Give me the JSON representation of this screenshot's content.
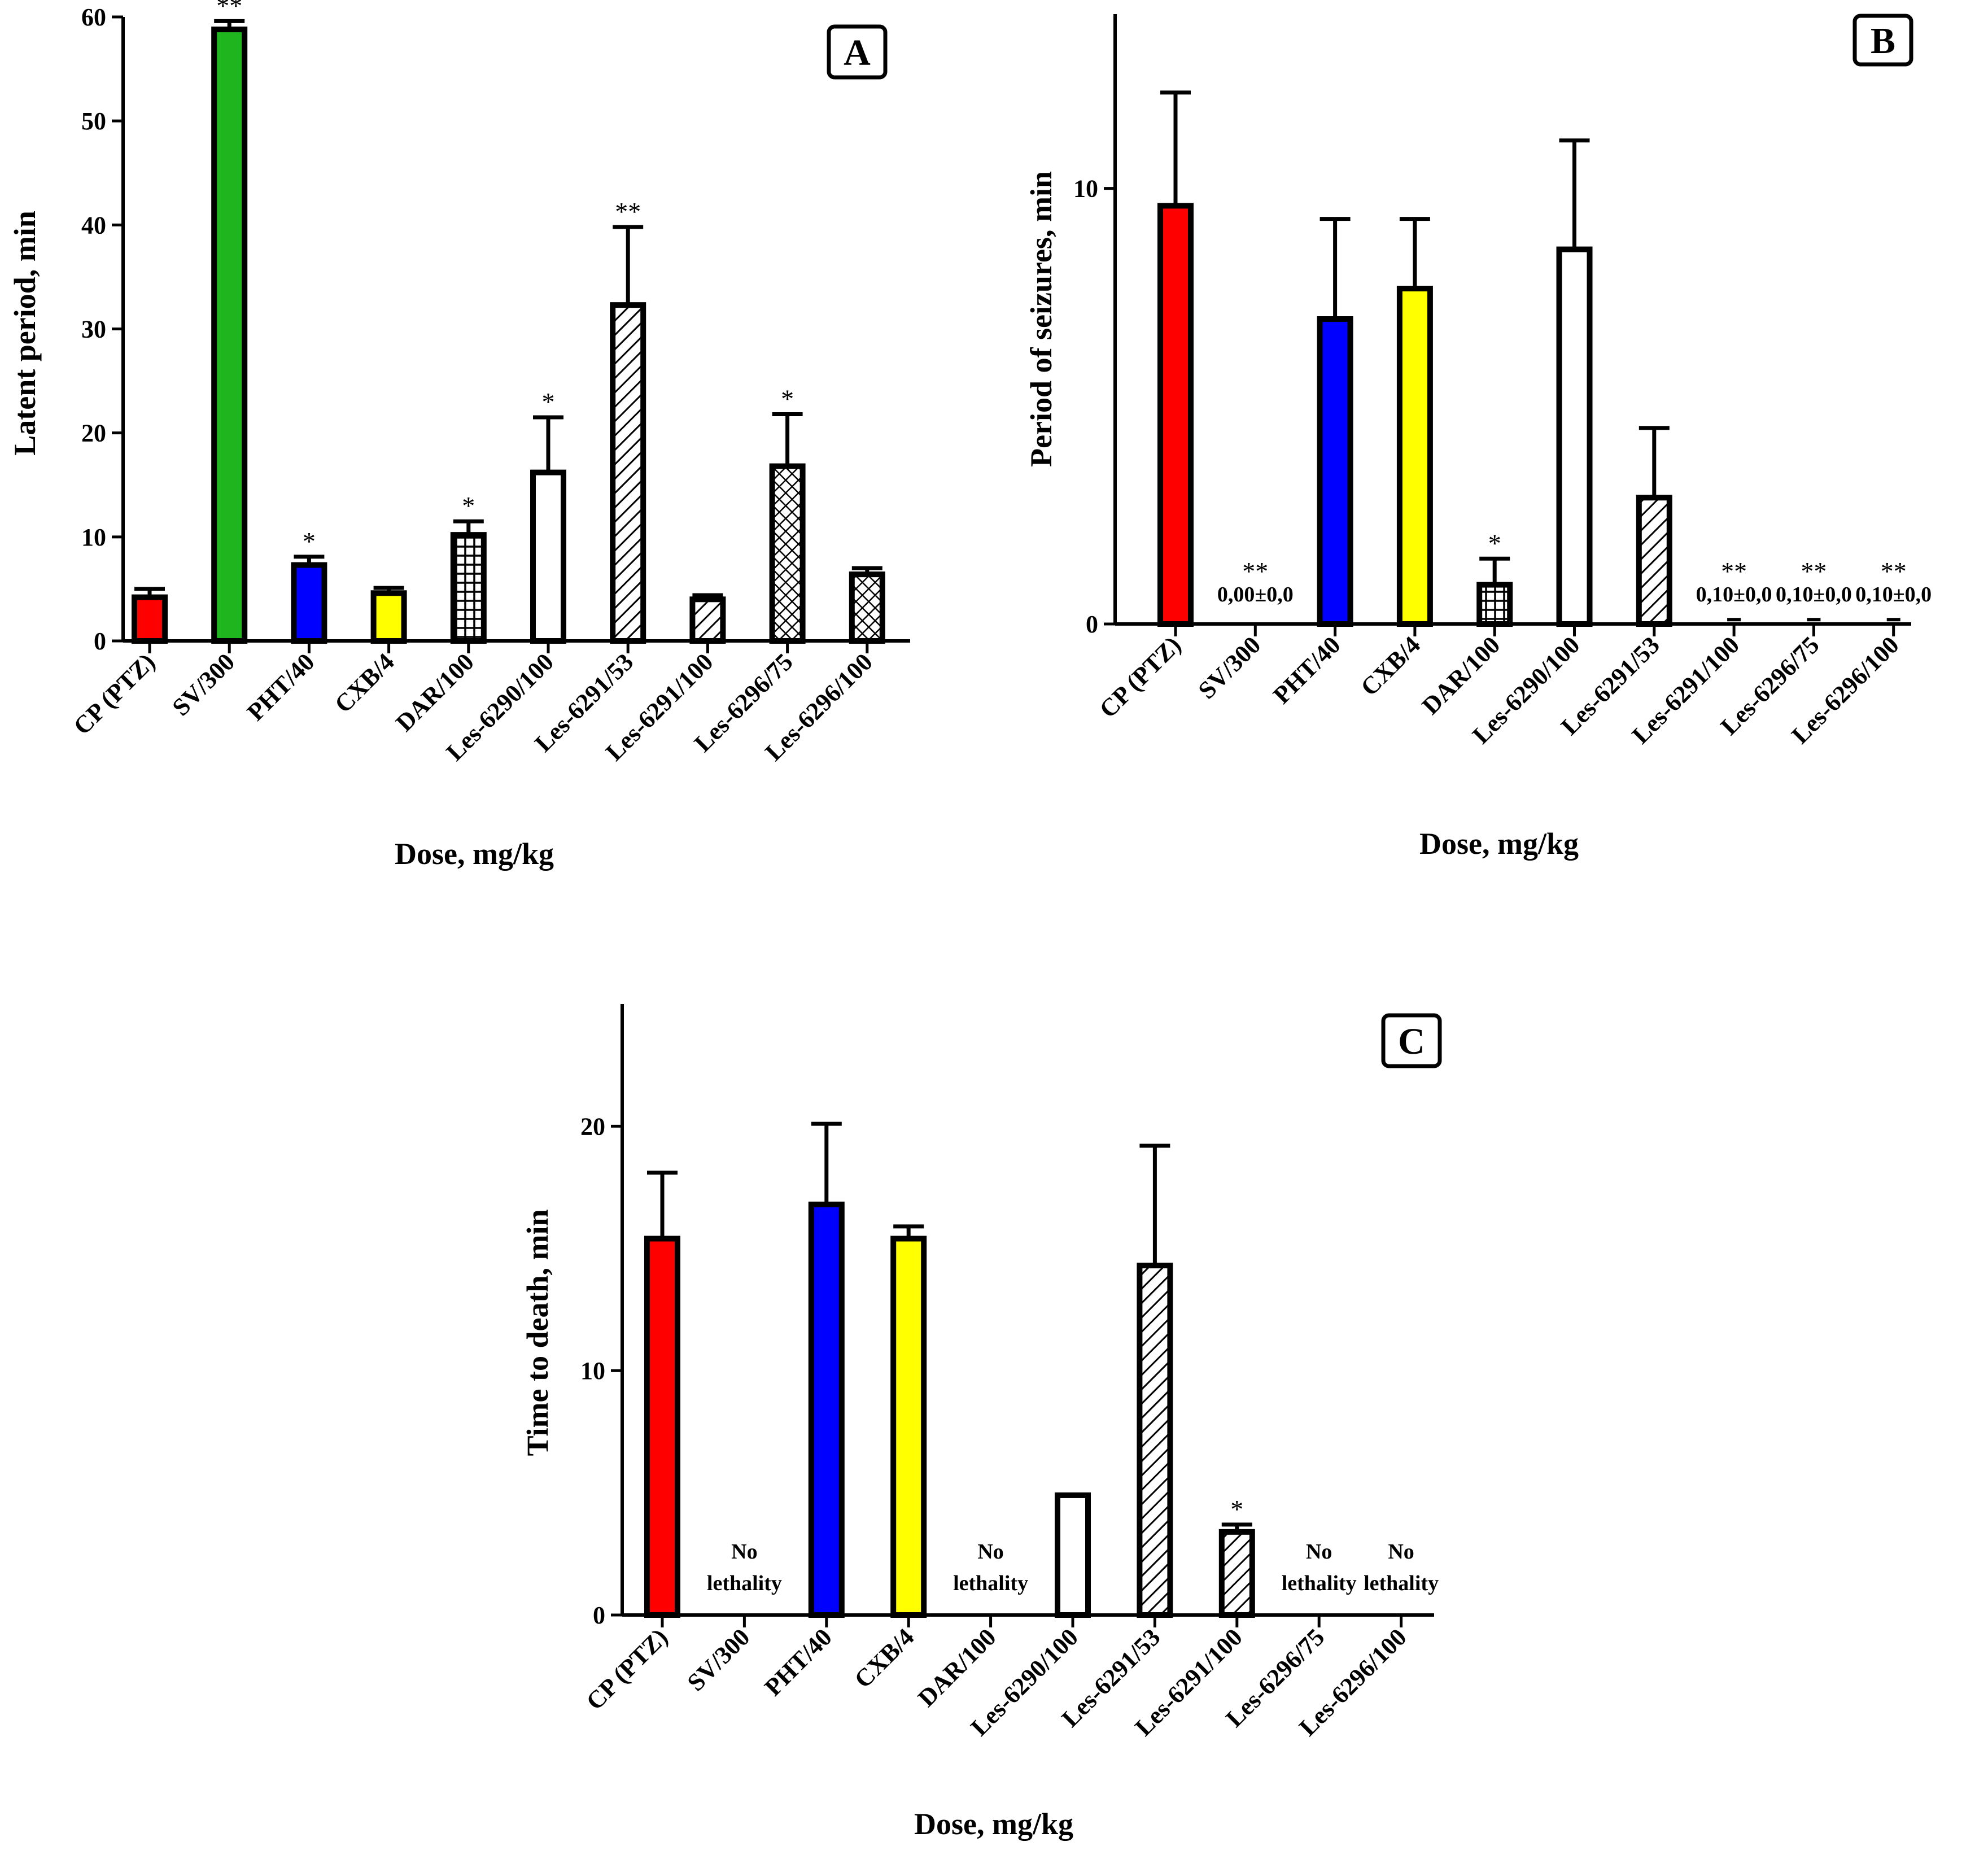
{
  "colors": {
    "red": "#ff0000",
    "green": "#1fb51f",
    "blue": "#0000ff",
    "yellow": "#ffff00",
    "white": "#ffffff",
    "axis": "#000000"
  },
  "chart_data": [
    {
      "id": "A",
      "type": "bar",
      "panel_letter": "A",
      "ylabel": "Latent period, min",
      "xlabel": "Dose, mg/kg",
      "ylim": [
        0,
        60
      ],
      "yticks": [
        0,
        10,
        20,
        30,
        40,
        50,
        60
      ],
      "categories": [
        "CP (PTZ)",
        "SV/300",
        "PHT/40",
        "CXB/4",
        "DAR/100",
        "Les-6290/100",
        "Les-6291/53",
        "Les-6291/100",
        "Les-6296/75",
        "Les-6296/100"
      ],
      "values": [
        4.2,
        58.8,
        7.3,
        4.6,
        10.2,
        16.2,
        32.3,
        4.0,
        16.8,
        6.4
      ],
      "errors": [
        0.8,
        0.8,
        0.8,
        0.5,
        1.3,
        5.3,
        7.5,
        0.4,
        5.0,
        0.6
      ],
      "fills": [
        "red",
        "green",
        "blue",
        "yellow",
        "grid",
        "white",
        "hatch",
        "hatch",
        "crosshatch",
        "crosshatch"
      ],
      "significance": [
        "",
        "**",
        "*",
        "",
        "*",
        "*",
        "**",
        "",
        "*",
        ""
      ],
      "annotations": [
        "",
        "",
        "",
        "",
        "",
        "",
        "",
        "",
        "",
        ""
      ]
    },
    {
      "id": "B",
      "type": "bar",
      "panel_letter": "B",
      "ylabel": "Period of seizures, min",
      "xlabel": "Dose, mg/kg",
      "ylim": [
        0,
        14
      ],
      "yticks": [
        0,
        10
      ],
      "categories": [
        "CP (PTZ)",
        "SV/300",
        "PHT/40",
        "CXB/4",
        "DAR/100",
        "Les-6290/100",
        "Les-6291/53",
        "Les-6291/100",
        "Les-6296/75",
        "Les-6296/100"
      ],
      "values": [
        9.6,
        0.0,
        7.0,
        7.7,
        0.9,
        8.6,
        2.9,
        0.1,
        0.1,
        0.1
      ],
      "errors": [
        2.6,
        0,
        2.3,
        1.6,
        0.6,
        2.5,
        1.6,
        0,
        0,
        0
      ],
      "fills": [
        "red",
        "none",
        "blue",
        "yellow",
        "grid",
        "white",
        "hatch",
        "none",
        "none",
        "none"
      ],
      "significance": [
        "",
        "**",
        "",
        "",
        "*",
        "",
        "",
        "**",
        "**",
        "**"
      ],
      "annotations": [
        "",
        "0,00±0,0",
        "",
        "",
        "",
        "",
        "",
        "0,10±0,0",
        "0,10±0,0",
        "0,10±0,0"
      ]
    },
    {
      "id": "C",
      "type": "bar",
      "panel_letter": "C",
      "ylabel": "Time to death, min",
      "xlabel": "Dose, mg/kg",
      "ylim": [
        0,
        25
      ],
      "yticks": [
        0,
        10,
        20
      ],
      "categories": [
        "CP (PTZ)",
        "SV/300",
        "PHT/40",
        "CXB/4",
        "DAR/100",
        "Les-6290/100",
        "Les-6291/53",
        "Les-6291/100",
        "Les-6296/75",
        "Les-6296/100"
      ],
      "values": [
        15.4,
        null,
        16.8,
        15.4,
        null,
        4.9,
        14.3,
        3.4,
        null,
        null
      ],
      "errors": [
        2.7,
        0,
        3.3,
        0.5,
        0,
        0,
        4.9,
        0.3,
        0,
        0
      ],
      "fills": [
        "red",
        "none",
        "blue",
        "yellow",
        "none",
        "white",
        "hatch",
        "hatch",
        "none",
        "none"
      ],
      "significance": [
        "",
        "",
        "",
        "",
        "",
        "",
        "",
        "*",
        "",
        ""
      ],
      "annotations": [
        "",
        "No lethality",
        "",
        "",
        "No lethality",
        "",
        "",
        "",
        "No lethality",
        "No lethality"
      ]
    }
  ]
}
